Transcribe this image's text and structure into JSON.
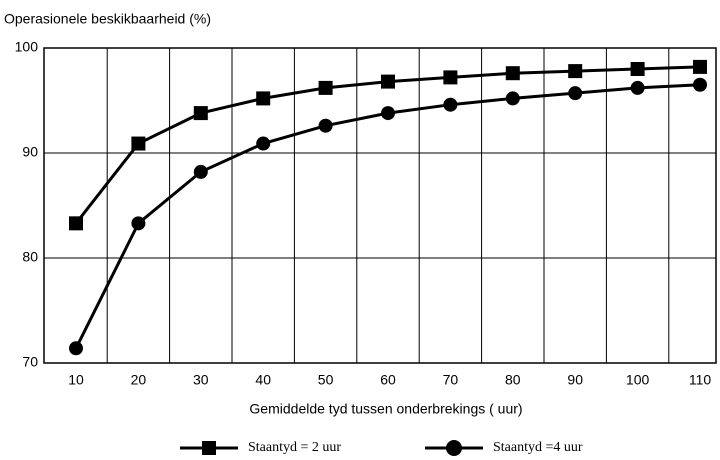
{
  "chart_data": {
    "type": "line",
    "title": "Operasionele beskikbaarheid (%)",
    "x_label": "Gemiddelde tyd tussen onderbrekings ( uur)",
    "categories": [
      "10",
      "20",
      "30",
      "40",
      "50",
      "60",
      "70",
      "80",
      "90",
      "100",
      "110"
    ],
    "series": [
      {
        "name": "Staantyd = 2 uur",
        "color": "#000000",
        "marker": "square",
        "values": [
          83.3,
          90.9,
          93.8,
          95.2,
          96.2,
          96.8,
          97.2,
          97.6,
          97.8,
          98.0,
          98.2
        ]
      },
      {
        "name": "Staantyd =4 uur",
        "color": "#000000",
        "marker": "circle",
        "values": [
          71.4,
          83.3,
          88.2,
          90.9,
          92.6,
          93.8,
          94.6,
          95.2,
          95.7,
          96.2,
          96.5
        ]
      }
    ],
    "ylim": [
      70,
      100
    ],
    "yticks": [
      70,
      80,
      90,
      100
    ],
    "grid": true,
    "legend": "bottom"
  }
}
